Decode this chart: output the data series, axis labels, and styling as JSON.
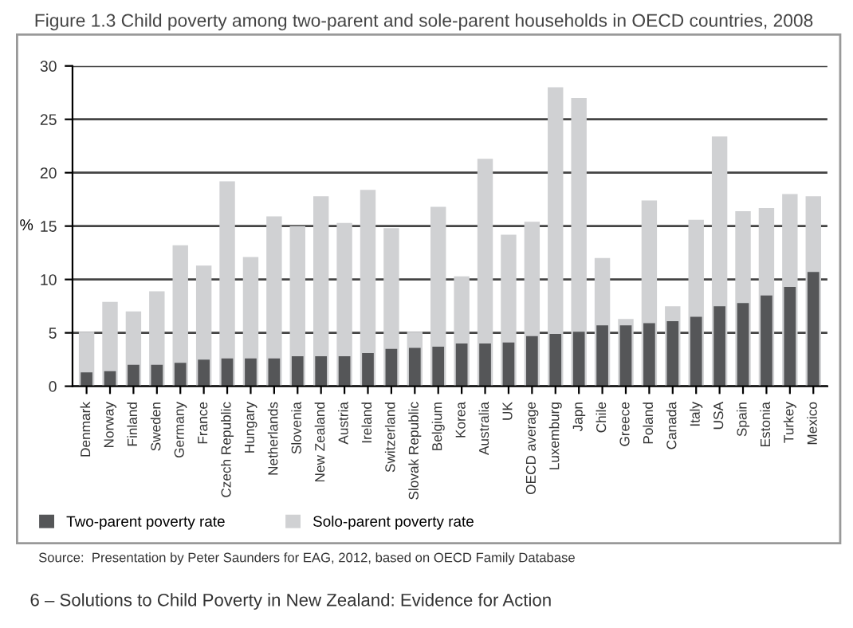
{
  "chart_data": {
    "type": "bar",
    "title": "Figure 1.3 Child poverty among two-parent and sole-parent households in OECD countries, 2008",
    "ylabel": "%",
    "categories": [
      "Denmark",
      "Norway",
      "Finland",
      "Sweden",
      "Germany",
      "France",
      "Czech Republic",
      "Hungary",
      "Netherlands",
      "Slovenia",
      "New Zealand",
      "Austria",
      "Ireland",
      "Switzerland",
      "Slovak Republic",
      "Belgium",
      "Korea",
      "Australia",
      "UK",
      "OECD average",
      "Luxemburg",
      "Japn",
      "Chile",
      "Greece",
      "Poland",
      "Canada",
      "Italy",
      "USA",
      "Spain",
      "Estonia",
      "Turkey",
      "Mexico"
    ],
    "series": [
      {
        "name": "Solo-parent poverty rate",
        "color": "#d0d1d3",
        "values": [
          5.1,
          7.9,
          7.0,
          8.9,
          13.2,
          11.3,
          19.2,
          12.1,
          15.9,
          15.0,
          17.8,
          15.3,
          18.4,
          14.8,
          5.1,
          16.8,
          10.3,
          21.3,
          14.2,
          15.4,
          28.0,
          27.0,
          12.0,
          6.3,
          17.4,
          7.5,
          15.6,
          23.4,
          16.4,
          16.7,
          18.0,
          17.8
        ]
      },
      {
        "name": "Two-parent poverty rate",
        "color": "#555658",
        "values": [
          1.3,
          1.4,
          2.0,
          2.0,
          2.2,
          2.5,
          2.6,
          2.6,
          2.6,
          2.8,
          2.8,
          2.8,
          3.1,
          3.5,
          3.6,
          3.7,
          4.0,
          4.0,
          4.1,
          4.7,
          4.9,
          5.1,
          5.7,
          5.7,
          5.9,
          6.1,
          6.5,
          7.5,
          7.8,
          8.5,
          9.3,
          10.7
        ]
      }
    ],
    "ylim": [
      0,
      30
    ],
    "yticks": [
      0,
      5,
      10,
      15,
      20,
      25,
      30
    ],
    "grid": "y",
    "legend": "bottom",
    "annotations": [
      "Source:  Presentation by Peter Saunders for EAG, 2012, based on OECD Family Database",
      "6 – Solutions to Child Poverty in New Zealand: Evidence for Action"
    ]
  }
}
